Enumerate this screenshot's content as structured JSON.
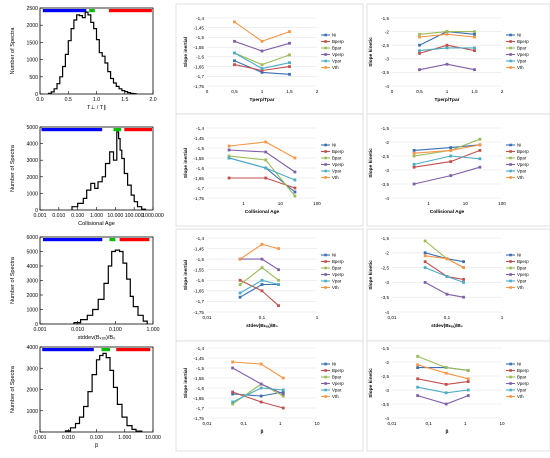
{
  "colors": {
    "blue": "#0000ff",
    "green": "#00c000",
    "red": "#ff0000",
    "Ni": "#3a6fb5",
    "Bperp": "#c0504d",
    "Bpar": "#9bbb59",
    "Vperp": "#7f5fa8",
    "Vpar": "#4bacc6",
    "Vth": "#f79646"
  },
  "legend_names": [
    "Ni",
    "Bperp",
    "Bpar",
    "Vperp",
    "Vpar",
    "Vth"
  ],
  "chart_data": [
    {
      "id": "h1",
      "type": "histogram",
      "xlabel": "T⊥ / T∥",
      "ylabel": "Number of Spectra",
      "scale": "linear",
      "xlim": [
        0,
        2
      ],
      "ylim": [
        0,
        2500
      ],
      "xticks": [
        0,
        0.5,
        1,
        1.5,
        2
      ],
      "xtick_labels": [
        "0.0",
        "0.5",
        "1.0",
        "1.5",
        "2.0"
      ],
      "yticks": [
        0,
        500,
        1000,
        1500,
        2000,
        2500
      ],
      "ytick_labels": [
        "0",
        "500",
        "1000",
        "1500",
        "2000",
        "2500"
      ],
      "x": [
        0.15,
        0.2,
        0.25,
        0.3,
        0.35,
        0.4,
        0.45,
        0.5,
        0.55,
        0.6,
        0.65,
        0.7,
        0.75,
        0.8,
        0.85,
        0.9,
        0.95,
        1.0,
        1.05,
        1.1,
        1.15,
        1.2,
        1.25,
        1.3,
        1.35,
        1.4,
        1.45,
        1.5,
        1.55,
        1.6,
        1.65,
        1.7
      ],
      "values": [
        20,
        60,
        150,
        300,
        500,
        800,
        1150,
        1550,
        1900,
        2150,
        2300,
        2280,
        2220,
        2380,
        2300,
        2080,
        1900,
        1580,
        1200,
        1100,
        900,
        650,
        450,
        320,
        220,
        150,
        100,
        70,
        40,
        20,
        10,
        0
      ],
      "bars": [
        {
          "color": "blue",
          "range": [
            0.05,
            0.82
          ]
        },
        {
          "color": "green",
          "range": [
            0.87,
            0.97
          ]
        },
        {
          "color": "red",
          "range": [
            1.22,
            1.98
          ]
        }
      ]
    },
    {
      "id": "h2",
      "type": "histogram",
      "xlabel": "Collisional Age",
      "ylabel": "Number of Spectra",
      "scale": "log",
      "xlim": [
        0.001,
        1000
      ],
      "ylim": [
        0,
        5000
      ],
      "xticks": [
        0.001,
        0.01,
        0.1,
        1,
        10,
        100,
        1000
      ],
      "xtick_labels": [
        "0.001",
        "0.010",
        "0.100",
        "1.000",
        "10.000",
        "100.000",
        "1000.000"
      ],
      "yticks": [
        0,
        1000,
        2000,
        3000,
        4000,
        5000
      ],
      "ytick_labels": [
        "0",
        "1000",
        "2000",
        "3000",
        "4000",
        "5000"
      ],
      "x": [
        0.05,
        0.1,
        0.2,
        0.3,
        0.5,
        0.8,
        1.2,
        2,
        3,
        5,
        8,
        12,
        15,
        18,
        22,
        30,
        45,
        70,
        100,
        150,
        250,
        400
      ],
      "values": [
        200,
        400,
        700,
        1200,
        1600,
        1300,
        1700,
        2000,
        2800,
        3500,
        3000,
        4700,
        4300,
        3600,
        3100,
        2200,
        1500,
        900,
        500,
        200,
        50,
        0
      ],
      "bars": [
        {
          "color": "blue",
          "range": [
            0.0012,
            2
          ]
        },
        {
          "color": "green",
          "range": [
            8,
            20
          ]
        },
        {
          "color": "red",
          "range": [
            30,
            900
          ]
        }
      ]
    },
    {
      "id": "h3",
      "type": "histogram",
      "xlabel": "stddev(Bₖₑₓ)/B₀",
      "ylabel": "Number of Spectra",
      "scale": "log",
      "xlim": [
        0.001,
        1
      ],
      "ylim": [
        0,
        6000
      ],
      "xticks": [
        0.001,
        0.01,
        0.1,
        1
      ],
      "xtick_labels": [
        "0.001",
        "0.010",
        "0.100",
        "1.000"
      ],
      "yticks": [
        0,
        1000,
        2000,
        3000,
        4000,
        5000,
        6000
      ],
      "ytick_labels": [
        "0",
        "1000",
        "2000",
        "3000",
        "4000",
        "5000",
        "6000"
      ],
      "x": [
        0.008,
        0.012,
        0.018,
        0.025,
        0.035,
        0.05,
        0.065,
        0.08,
        0.1,
        0.13,
        0.16,
        0.2,
        0.25,
        0.3,
        0.4,
        0.55,
        0.7
      ],
      "values": [
        100,
        300,
        600,
        1000,
        1700,
        2800,
        4000,
        5000,
        5100,
        5000,
        4200,
        3100,
        1900,
        1200,
        600,
        200,
        0
      ],
      "bars": [
        {
          "color": "blue",
          "range": [
            0.0012,
            0.045
          ]
        },
        {
          "color": "green",
          "range": [
            0.07,
            0.1
          ]
        },
        {
          "color": "red",
          "range": [
            0.13,
            0.8
          ]
        }
      ]
    },
    {
      "id": "h4",
      "type": "histogram",
      "xlabel": "β",
      "ylabel": "Number of Spectra",
      "scale": "log",
      "xlim": [
        0.001,
        10
      ],
      "ylim": [
        0,
        4000
      ],
      "xticks": [
        0.001,
        0.01,
        0.1,
        1,
        10
      ],
      "xtick_labels": [
        "0.001",
        "0.010",
        "0.100",
        "1.000",
        "10.000"
      ],
      "yticks": [
        0,
        1000,
        2000,
        3000,
        4000
      ],
      "ytick_labels": [
        "0",
        "1000",
        "2000",
        "3000",
        "4000"
      ],
      "x": [
        0.008,
        0.012,
        0.018,
        0.025,
        0.035,
        0.05,
        0.07,
        0.1,
        0.13,
        0.17,
        0.22,
        0.3,
        0.4,
        0.55,
        0.8,
        1.2,
        1.8,
        2.5,
        4
      ],
      "values": [
        50,
        200,
        400,
        700,
        1200,
        1900,
        2700,
        3400,
        3600,
        3700,
        3500,
        2900,
        2100,
        1300,
        700,
        300,
        120,
        40,
        0
      ],
      "bars": [
        {
          "color": "blue",
          "range": [
            0.0012,
            0.08
          ]
        },
        {
          "color": "green",
          "range": [
            0.15,
            0.3
          ]
        },
        {
          "color": "red",
          "range": [
            0.5,
            8
          ]
        }
      ]
    },
    {
      "id": "m1",
      "type": "line",
      "xlabel": "Tperp/Tpar",
      "ylabel": "Slope inertial",
      "scale": "linear",
      "xlim": [
        0,
        2
      ],
      "ylim": [
        -1.75,
        -1.4
      ],
      "xticks": [
        0,
        0.5,
        1,
        1.5,
        2
      ],
      "xtick_labels": [
        "0",
        "0,5",
        "1",
        "1,5",
        "2"
      ],
      "yticks": [
        -1.4,
        -1.45,
        -1.5,
        -1.55,
        -1.6,
        -1.65,
        -1.7,
        -1.75
      ],
      "ytick_labels": [
        "-1,4",
        "-1,45",
        "-1,5",
        "-1,55",
        "-1,6",
        "-1,65",
        "-1,7",
        "-1,75"
      ],
      "x": [
        0.5,
        1,
        1.5
      ],
      "series": [
        {
          "name": "Ni",
          "values": [
            -1.62,
            -1.68,
            -1.69
          ]
        },
        {
          "name": "Bperp",
          "values": [
            -1.64,
            -1.67,
            -1.65
          ]
        },
        {
          "name": "Bpar",
          "values": [
            -1.58,
            -1.64,
            -1.59
          ]
        },
        {
          "name": "Vperp",
          "values": [
            -1.52,
            -1.57,
            -1.53
          ]
        },
        {
          "name": "Vpar",
          "values": [
            -1.58,
            -1.66,
            -1.63
          ]
        },
        {
          "name": "Vth",
          "values": [
            -1.42,
            -1.52,
            -1.47
          ]
        }
      ]
    },
    {
      "id": "m2",
      "type": "line",
      "xlabel": "Collisional Age",
      "ylabel": "Slope inertial",
      "scale": "log",
      "xlim": [
        0.1,
        100
      ],
      "ylim": [
        -1.75,
        -1.4
      ],
      "xticks": [
        1,
        10,
        100
      ],
      "xtick_labels": [
        "1",
        "10",
        "100"
      ],
      "yticks": [
        -1.4,
        -1.45,
        -1.5,
        -1.55,
        -1.6,
        -1.65,
        -1.7,
        -1.75
      ],
      "ytick_labels": [
        "-1,4",
        "-1,45",
        "-1,5",
        "-1,55",
        "-1,6",
        "-1,65",
        "-1,7",
        "-1,75"
      ],
      "x": [
        0.4,
        4,
        25
      ],
      "series": [
        {
          "name": "Ni",
          "values": [
            -1.55,
            -1.6,
            -1.72
          ]
        },
        {
          "name": "Bperp",
          "values": [
            -1.65,
            -1.65,
            -1.7
          ]
        },
        {
          "name": "Bpar",
          "values": [
            -1.54,
            -1.56,
            -1.74
          ]
        },
        {
          "name": "Vperp",
          "values": [
            -1.51,
            -1.52,
            -1.62
          ]
        },
        {
          "name": "Vpar",
          "values": [
            -1.55,
            -1.6,
            -1.66
          ]
        },
        {
          "name": "Vth",
          "values": [
            -1.49,
            -1.47,
            -1.55
          ]
        }
      ]
    },
    {
      "id": "m3",
      "type": "line",
      "xlabel": "stdev(Bₖₑₓ)/B₀",
      "ylabel": "Slope inertial",
      "scale": "log",
      "xlim": [
        0.01,
        1
      ],
      "ylim": [
        -1.75,
        -1.4
      ],
      "xticks": [
        0.01,
        0.1,
        1
      ],
      "xtick_labels": [
        "0,01",
        "0,1",
        "1"
      ],
      "yticks": [
        -1.4,
        -1.45,
        -1.5,
        -1.55,
        -1.6,
        -1.65,
        -1.7,
        -1.75
      ],
      "ytick_labels": [
        "-1,4",
        "-1,45",
        "-1,5",
        "-1,55",
        "-1,6",
        "-1,65",
        "-1,7",
        "-1,75"
      ],
      "x": [
        0.04,
        0.1,
        0.2
      ],
      "series": [
        {
          "name": "Ni",
          "values": [
            -1.68,
            -1.62,
            -1.62
          ]
        },
        {
          "name": "Bperp",
          "values": [
            -1.6,
            -1.65,
            -1.72
          ]
        },
        {
          "name": "Bpar",
          "values": [
            -1.62,
            -1.54,
            -1.6
          ]
        },
        {
          "name": "Vperp",
          "values": [
            -1.5,
            -1.5,
            -1.55
          ]
        },
        {
          "name": "Vpar",
          "values": [
            -1.66,
            -1.6,
            -1.62
          ]
        },
        {
          "name": "Vth",
          "values": [
            -1.5,
            -1.43,
            -1.45
          ]
        }
      ]
    },
    {
      "id": "m4",
      "type": "line",
      "xlabel": "β",
      "ylabel": "Slope inertial",
      "scale": "log",
      "xlim": [
        0.01,
        10
      ],
      "ylim": [
        -1.75,
        -1.4
      ],
      "xticks": [
        0.01,
        0.1,
        1,
        10
      ],
      "xtick_labels": [
        "0,01",
        "0,1",
        "1",
        "10"
      ],
      "yticks": [
        -1.4,
        -1.45,
        -1.5,
        -1.55,
        -1.6,
        -1.65,
        -1.7,
        -1.75
      ],
      "ytick_labels": [
        "-1,4",
        "-1,45",
        "-1,5",
        "-1,55",
        "-1,6",
        "-1,65",
        "-1,7",
        "-1,75"
      ],
      "x": [
        0.05,
        0.3,
        1.2
      ],
      "series": [
        {
          "name": "Ni",
          "values": [
            -1.63,
            -1.64,
            -1.62
          ]
        },
        {
          "name": "Bperp",
          "values": [
            -1.62,
            -1.67,
            -1.7
          ]
        },
        {
          "name": "Bpar",
          "values": [
            -1.68,
            -1.58,
            -1.64
          ]
        },
        {
          "name": "Vperp",
          "values": [
            -1.5,
            -1.58,
            -1.63
          ]
        },
        {
          "name": "Vpar",
          "values": [
            -1.67,
            -1.6,
            -1.61
          ]
        },
        {
          "name": "Vth",
          "values": [
            -1.47,
            -1.48,
            -1.55
          ]
        }
      ]
    },
    {
      "id": "r1",
      "type": "line",
      "xlabel": "Tperp/Tpar",
      "ylabel": "Slope kinetic",
      "scale": "linear",
      "xlim": [
        0,
        2
      ],
      "ylim": [
        -4,
        -1.5
      ],
      "xticks": [
        0,
        0.5,
        1,
        1.5,
        2
      ],
      "xtick_labels": [
        "0",
        "0,5",
        "1",
        "1,5",
        "2"
      ],
      "yticks": [
        -1.5,
        -2,
        -2.5,
        -3,
        -3.5,
        -4
      ],
      "ytick_labels": [
        "-1,5",
        "-2",
        "-2,5",
        "-3",
        "-3,5",
        "-4"
      ],
      "x": [
        0.5,
        1,
        1.5
      ],
      "series": [
        {
          "name": "Ni",
          "values": [
            -2.5,
            -2.0,
            -2.1
          ]
        },
        {
          "name": "Bperp",
          "values": [
            -2.8,
            -2.5,
            -2.7
          ]
        },
        {
          "name": "Bpar",
          "values": [
            -2.1,
            -2.0,
            -2.0
          ]
        },
        {
          "name": "Vperp",
          "values": [
            -3.4,
            -3.2,
            -3.4
          ]
        },
        {
          "name": "Vpar",
          "values": [
            -2.7,
            -2.6,
            -2.6
          ]
        },
        {
          "name": "Vth",
          "values": [
            -2.2,
            -2.1,
            -2.2
          ]
        }
      ]
    },
    {
      "id": "r2",
      "type": "line",
      "xlabel": "Collisional Age",
      "ylabel": "Slope kinetic",
      "scale": "log",
      "xlim": [
        0.1,
        100
      ],
      "ylim": [
        -4,
        -1.5
      ],
      "xticks": [
        1,
        10,
        100
      ],
      "xtick_labels": [
        "1",
        "10",
        "100"
      ],
      "yticks": [
        -1.5,
        -2,
        -2.5,
        -3,
        -3.5,
        -4
      ],
      "ytick_labels": [
        "-1,5",
        "-2",
        "-2,5",
        "-3",
        "-3,5",
        "-4"
      ],
      "x": [
        0.4,
        4,
        25
      ],
      "series": [
        {
          "name": "Ni",
          "values": [
            -2.3,
            -2.2,
            -2.1
          ]
        },
        {
          "name": "Bperp",
          "values": [
            -2.9,
            -2.7,
            -2.3
          ]
        },
        {
          "name": "Bpar",
          "values": [
            -2.5,
            -2.3,
            -1.9
          ]
        },
        {
          "name": "Vperp",
          "values": [
            -3.5,
            -3.2,
            -2.9
          ]
        },
        {
          "name": "Vpar",
          "values": [
            -2.8,
            -2.5,
            -2.6
          ]
        },
        {
          "name": "Vth",
          "values": [
            -2.4,
            -2.3,
            -2.1
          ]
        }
      ]
    },
    {
      "id": "r3",
      "type": "line",
      "xlabel": "stdev(Bₖₑₓ)/B₀",
      "ylabel": "Slope kinetic",
      "scale": "log",
      "xlim": [
        0.01,
        1
      ],
      "ylim": [
        -4,
        -1.5
      ],
      "xticks": [
        0.01,
        0.1,
        1
      ],
      "xtick_labels": [
        "0,01",
        "0,1",
        "1"
      ],
      "yticks": [
        -1.5,
        -2,
        -2.5,
        -3,
        -3.5,
        -4
      ],
      "ytick_labels": [
        "-1,5",
        "-2",
        "-2,5",
        "-3",
        "-3,5",
        "-4"
      ],
      "x": [
        0.04,
        0.1,
        0.2
      ],
      "series": [
        {
          "name": "Ni",
          "values": [
            -2.0,
            -2.2,
            -2.3
          ]
        },
        {
          "name": "Bperp",
          "values": [
            -2.3,
            -2.8,
            -2.9
          ]
        },
        {
          "name": "Bpar",
          "values": [
            -1.6,
            -2.2,
            -2.5
          ]
        },
        {
          "name": "Vperp",
          "values": [
            -3.0,
            -3.4,
            -3.5
          ]
        },
        {
          "name": "Vpar",
          "values": [
            -2.5,
            -2.8,
            -3.0
          ]
        },
        {
          "name": "Vth",
          "values": [
            -2.1,
            -2.2,
            -2.5
          ]
        }
      ]
    },
    {
      "id": "r4",
      "type": "line",
      "xlabel": "β",
      "ylabel": "Slope kinetic",
      "scale": "log",
      "xlim": [
        0.01,
        10
      ],
      "ylim": [
        -4,
        -1.5
      ],
      "xticks": [
        0.01,
        0.1,
        1,
        10
      ],
      "xtick_labels": [
        "0,01",
        "0,1",
        "1",
        "10"
      ],
      "yticks": [
        -1.5,
        -2,
        -2.5,
        -3,
        -3.5,
        -4
      ],
      "ytick_labels": [
        "-1,5",
        "-2",
        "-2,5",
        "-3",
        "-3,5",
        "-4"
      ],
      "x": [
        0.05,
        0.3,
        1.2
      ],
      "series": [
        {
          "name": "Ni",
          "values": [
            -2.2,
            -2.2,
            -2.3
          ]
        },
        {
          "name": "Bperp",
          "values": [
            -2.6,
            -2.8,
            -2.7
          ]
        },
        {
          "name": "Bpar",
          "values": [
            -1.8,
            -2.2,
            -2.3
          ]
        },
        {
          "name": "Vperp",
          "values": [
            -3.2,
            -3.5,
            -3.2
          ]
        },
        {
          "name": "Vpar",
          "values": [
            -2.9,
            -3.1,
            -3.0
          ]
        },
        {
          "name": "Vth",
          "values": [
            -2.1,
            -2.4,
            -2.6
          ]
        }
      ]
    }
  ]
}
